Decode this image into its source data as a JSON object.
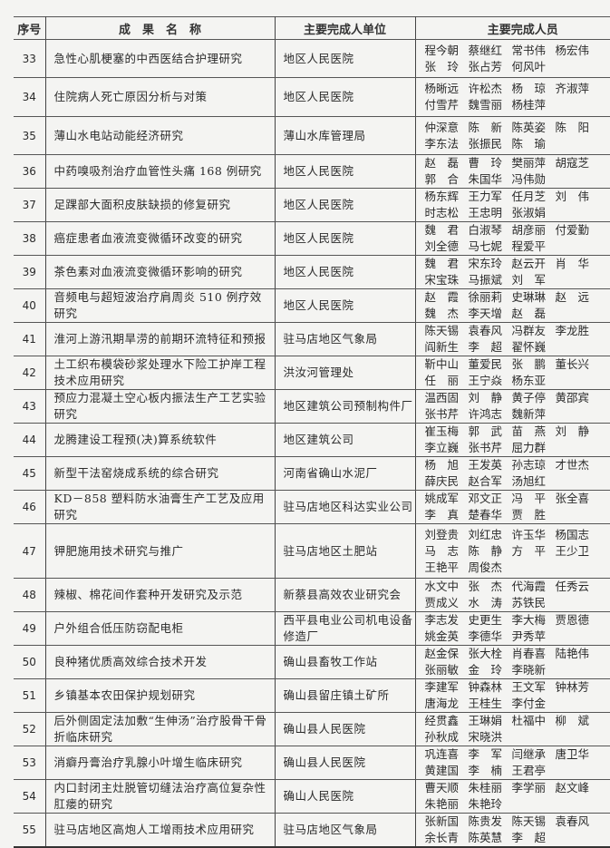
{
  "headers": {
    "seq": "序号",
    "title": "成　果　名　称",
    "unit": "主要完成人单位",
    "people": "主要完成人员"
  },
  "rows": [
    {
      "seq": "33",
      "title": "急性心肌梗塞的中西医结合护理研究",
      "unit": "地区人民医院",
      "people": [
        "程今朝",
        "蔡继红",
        "常书伟",
        "杨宏伟",
        "张　玲",
        "张占芳",
        "何风叶"
      ]
    },
    {
      "seq": "34",
      "title": "住院病人死亡原因分析与对策",
      "unit": "地区人民医院",
      "people": [
        "杨晰远",
        "许松杰",
        "杨　琼",
        "齐淑萍",
        "付雪芹",
        "魏雪丽",
        "杨桂萍"
      ]
    },
    {
      "seq": "35",
      "title": "薄山水电站动能经济研究",
      "unit": "薄山水库管理局",
      "people": [
        "仲深意",
        "陈　新",
        "陈英姿",
        "陈　阳",
        "李东法",
        "张振民",
        "陈　瑜"
      ]
    },
    {
      "seq": "36",
      "title": "中药嗅吸剂治疗血管性头痛 168 例研究",
      "unit": "地区人民医院",
      "people": [
        "赵　磊",
        "曹　玲",
        "樊丽萍",
        "胡寇芝",
        "郭　合",
        "朱国华",
        "冯伟勋"
      ]
    },
    {
      "seq": "37",
      "title": "足踝部大面积皮肤缺损的修复研究",
      "unit": "地区人民医院",
      "people": [
        "杨东辉",
        "王力军",
        "任月芝",
        "刘　伟",
        "时志松",
        "王忠明",
        "张淑娟"
      ]
    },
    {
      "seq": "38",
      "title": "癌症患者血液流变微循环改变的研究",
      "unit": "地区人民医院",
      "people": [
        "魏　君",
        "白淑琴",
        "胡彦丽",
        "付爱勤",
        "刘全德",
        "马七妮",
        "程爱平"
      ]
    },
    {
      "seq": "39",
      "title": "茶色素对血液流变微循环影响的研究",
      "unit": "地区人民医院",
      "people": [
        "魏　君",
        "宋东玲",
        "赵云开",
        "肖　华",
        "宋宝珠",
        "马振斌",
        "刘　军"
      ]
    },
    {
      "seq": "40",
      "title": "音频电与超短波治疗肩周炎 510 例疗效研究",
      "unit": "地区人民医院",
      "people": [
        "赵　霞",
        "徐丽莉",
        "史琳琳",
        "赵　远",
        "魏　杰",
        "李天增",
        "赵　磊"
      ]
    },
    {
      "seq": "41",
      "title": "淮河上游汛期旱涝的前期环流特征和预报",
      "unit": "驻马店地区气象局",
      "people": [
        "陈天锡",
        "袁春风",
        "冯群友",
        "李龙胜",
        "阎新生",
        "李　超",
        "翟怀巍"
      ]
    },
    {
      "seq": "42",
      "title": "土工织布模袋砂浆处理水下险工护岸工程技术应用研究",
      "unit": "洪汝河管理处",
      "people": [
        "靳中山",
        "董爱民",
        "张　鹏",
        "董长兴",
        "任　丽",
        "王宁焱",
        "杨东亚"
      ]
    },
    {
      "seq": "43",
      "title": "预应力混凝土空心板内振法生产工艺实验研究",
      "unit": "地区建筑公司预制构件厂",
      "people": [
        "温西固",
        "刘　静",
        "黄子停",
        "黄邵宾",
        "张书芹",
        "许鸿志",
        "魏新萍"
      ]
    },
    {
      "seq": "44",
      "title": "龙腾建设工程预(决)算系统软件",
      "unit": "地区建筑公司",
      "people": [
        "崔玉梅",
        "郭　武",
        "苗　燕",
        "刘　静",
        "李立巍",
        "张书芹",
        "屈力群"
      ]
    },
    {
      "seq": "45",
      "title": "新型干法窑烧成系统的综合研究",
      "unit": "河南省确山水泥厂",
      "people": [
        "杨　旭",
        "王发英",
        "孙志琼",
        "才世杰",
        "薛庆民",
        "赵合军",
        "汤旭红"
      ]
    },
    {
      "seq": "46",
      "title": "KD－858 塑料防水油膏生产工艺及应用研究",
      "unit": "驻马店地区科达实业公司",
      "people": [
        "姚成军",
        "邓文正",
        "冯　平",
        "张全喜",
        "李　真",
        "楚春华",
        "贾　胜"
      ]
    },
    {
      "seq": "47",
      "title": "钾肥施用技术研究与推广",
      "unit": "驻马店地区土肥站",
      "people": [
        "刘登贵",
        "刘红忠",
        "许玉华",
        "杨国志",
        "马　志",
        "陈　静",
        "方　平",
        "王少卫",
        "王艳平",
        "周俊杰"
      ]
    },
    {
      "seq": "48",
      "title": "辣椒、棉花间作套种开发研究及示范",
      "unit": "新蔡县高效农业研究会",
      "people": [
        "水文中",
        "张　杰",
        "代海霞",
        "任秀云",
        "贾成义",
        "水　涛",
        "苏铁民"
      ]
    },
    {
      "seq": "49",
      "title": "户外组合低压防窃配电柜",
      "unit": "西平县电业公司机电设备修造厂",
      "people": [
        "李志发",
        "史更生",
        "李大梅",
        "贾恩德",
        "姚金英",
        "李德华",
        "尹秀苹"
      ]
    },
    {
      "seq": "50",
      "title": "良种猪优质高效综合技术开发",
      "unit": "确山县畜牧工作站",
      "people": [
        "赵金保",
        "张大栓",
        "肖春喜",
        "陆艳伟",
        "张丽敏",
        "金　玲",
        "李晓新"
      ]
    },
    {
      "seq": "51",
      "title": "乡镇基本农田保护规划研究",
      "unit": "确山县留庄镇土矿所",
      "people": [
        "李建军",
        "钟森林",
        "王文军",
        "钟林芳",
        "唐海龙",
        "王桂生",
        "李付金"
      ]
    },
    {
      "seq": "52",
      "title": "后外侧固定法加敷“生伸汤”治疗股骨干骨折临床研究",
      "unit": "确山县人民医院",
      "people": [
        "经贯鑫",
        "王琳娟",
        "杜福中",
        "柳　斌",
        "孙秋成",
        "宋晓洪"
      ]
    },
    {
      "seq": "53",
      "title": "消癖丹膏治疗乳腺小叶增生临床研究",
      "unit": "确山县人民医院",
      "people": [
        "巩连喜",
        "李　军",
        "闫继承",
        "唐卫华",
        "黄建国",
        "李　楠",
        "王君亭"
      ]
    },
    {
      "seq": "54",
      "title": "内口封闭主灶脱管切缝法治疗高位复杂性肛瘘的研究",
      "unit": "确山人民医院",
      "people": [
        "曹天顺",
        "朱桂丽",
        "李学丽",
        "赵文峰",
        "朱艳丽",
        "朱艳玲"
      ]
    },
    {
      "seq": "55",
      "title": "驻马店地区高炮人工增雨技术应用研究",
      "unit": "驻马店地区气象局",
      "people": [
        "张新国",
        "陈贵发",
        "陈天锡",
        "袁春风",
        "余长青",
        "陈英慧",
        "李　超"
      ]
    }
  ]
}
